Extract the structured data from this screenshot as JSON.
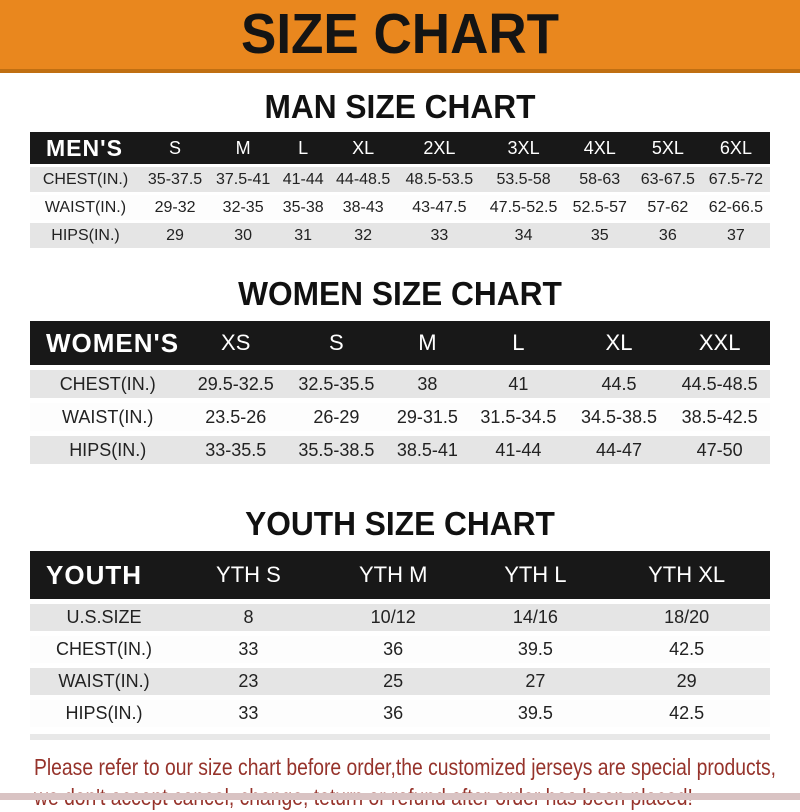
{
  "banner": {
    "title": "SIZE CHART"
  },
  "colors": {
    "banner_orange": "#E9871E",
    "banner_edge": "#C06F12",
    "table_header_black": "#181818",
    "row_gray": "#E5E5E5",
    "footer_red": "#96332B",
    "bottom_strip_pink": "#D9C3C3"
  },
  "sections": [
    {
      "heading": "MAN SIZE CHART",
      "table": {
        "header": [
          "MEN'S",
          "S",
          "M",
          "L",
          "XL",
          "2XL",
          "3XL",
          "4XL",
          "5XL",
          "6XL"
        ],
        "rows": [
          [
            "CHEST(IN.)",
            "35-37.5",
            "37.5-41",
            "41-44",
            "44-48.5",
            "48.5-53.5",
            "53.5-58",
            "58-63",
            "63-67.5",
            "67.5-72"
          ],
          [
            "WAIST(IN.)",
            "29-32",
            "32-35",
            "35-38",
            "38-43",
            "43-47.5",
            "47.5-52.5",
            "52.5-57",
            "57-62",
            "62-66.5"
          ],
          [
            "HIPS(IN.)",
            "29",
            "30",
            "31",
            "32",
            "33",
            "34",
            "35",
            "36",
            "37"
          ]
        ]
      }
    },
    {
      "heading": "WOMEN SIZE CHART",
      "table": {
        "header": [
          "WOMEN'S",
          "XS",
          "S",
          "M",
          "L",
          "XL",
          "XXL"
        ],
        "rows": [
          [
            "CHEST(IN.)",
            "29.5-32.5",
            "32.5-35.5",
            "38",
            "41",
            "44.5",
            "44.5-48.5"
          ],
          [
            "WAIST(IN.)",
            "23.5-26",
            "26-29",
            "29-31.5",
            "31.5-34.5",
            "34.5-38.5",
            "38.5-42.5"
          ],
          [
            "HIPS(IN.)",
            "33-35.5",
            "35.5-38.5",
            "38.5-41",
            "41-44",
            "44-47",
            "47-50"
          ]
        ]
      }
    },
    {
      "heading": "YOUTH SIZE CHART",
      "table": {
        "header": [
          "YOUTH",
          "YTH S",
          "YTH M",
          "YTH L",
          "YTH XL"
        ],
        "rows": [
          [
            "U.S.SIZE",
            "8",
            "10/12",
            "14/16",
            "18/20"
          ],
          [
            "CHEST(IN.)",
            "33",
            "36",
            "39.5",
            "42.5"
          ],
          [
            "WAIST(IN.)",
            "23",
            "25",
            "27",
            "29"
          ],
          [
            "HIPS(IN.)",
            "33",
            "36",
            "39.5",
            "42.5"
          ]
        ]
      }
    }
  ],
  "footer": {
    "line1": "Please refer to our size chart before order,the customized jerseys are special products,",
    "line2": "we don't accept cancel, change, teturn or refund after order has been placed!"
  }
}
